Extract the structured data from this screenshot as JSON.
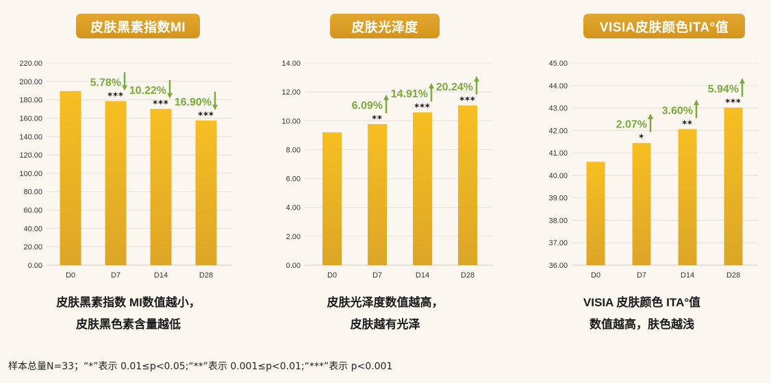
{
  "colors": {
    "bar_top": "#f7be22",
    "bar_bottom": "#dba627",
    "accent": "#7aab3a",
    "pill": "#d99c22"
  },
  "charts": [
    {
      "title": "皮肤黑素指数MI",
      "caption_line1": "皮肤黑素指数 MI数值越小，",
      "caption_line2": "皮肤黑色素含量越低"
    },
    {
      "title": "皮肤光泽度",
      "caption_line1": "皮肤光泽度数值越高，",
      "caption_line2": "皮肤越有光泽"
    },
    {
      "title": "VISIA皮肤颜色ITA°值",
      "caption_line1": "VISIA 皮肤颜色 ITA°值",
      "caption_line2": "数值越高，肤色越浅"
    }
  ],
  "footnote": "样本总量N=33；“*”表示 0.01≤p<0.05;“**”表示 0.001≤p<0.01;“***”表示 p<0.001",
  "chart_data": [
    {
      "type": "bar",
      "title": "皮肤黑素指数MI",
      "categories": [
        "D0",
        "D7",
        "D14",
        "D28"
      ],
      "values": [
        189.5,
        178.6,
        170.1,
        157.5
      ],
      "ylim": [
        0,
        220
      ],
      "yticks": [
        "0.00",
        "20.00",
        "40.00",
        "60.00",
        "80.00",
        "100.00",
        "120.00",
        "140.00",
        "160.00",
        "180.00",
        "200.00",
        "220.00"
      ],
      "significance": [
        "",
        "***",
        "***",
        "***"
      ],
      "changes": [
        "",
        "5.78%",
        "10.22%",
        "16.90%"
      ],
      "direction": "down"
    },
    {
      "type": "bar",
      "title": "皮肤光泽度",
      "categories": [
        "D0",
        "D7",
        "D14",
        "D28"
      ],
      "values": [
        9.2,
        9.77,
        10.58,
        11.06
      ],
      "ylim": [
        0,
        14
      ],
      "yticks": [
        "0.00",
        "2.00",
        "4.00",
        "6.00",
        "8.00",
        "10.00",
        "12.00",
        "14.00"
      ],
      "significance": [
        "",
        "**",
        "***",
        "***"
      ],
      "changes": [
        "",
        "6.09%",
        "14.91%",
        "20.24%"
      ],
      "direction": "up"
    },
    {
      "type": "bar",
      "title": "VISIA皮肤颜色ITA°值",
      "categories": [
        "D0",
        "D7",
        "D14",
        "D28"
      ],
      "values": [
        40.6,
        41.44,
        42.06,
        43.02
      ],
      "ylim": [
        36,
        45
      ],
      "yticks": [
        "36.00",
        "37.00",
        "38.00",
        "39.00",
        "40.00",
        "41.00",
        "42.00",
        "43.00",
        "44.00",
        "45.00"
      ],
      "significance": [
        "",
        "*",
        "**",
        "***"
      ],
      "changes": [
        "",
        "2.07%",
        "3.60%",
        "5.94%"
      ],
      "direction": "up"
    }
  ]
}
